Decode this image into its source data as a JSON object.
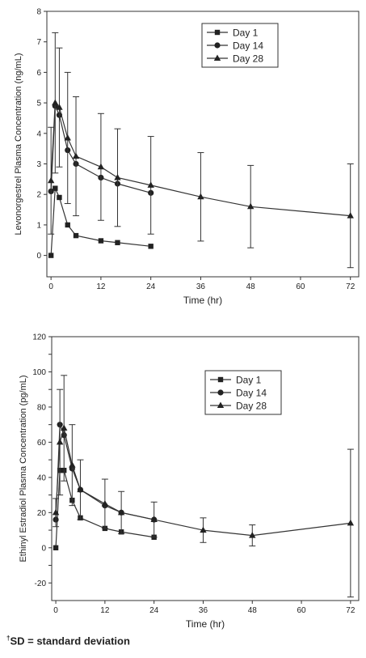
{
  "chart_data": [
    {
      "type": "line",
      "title": "",
      "xlabel": "Time (hr)",
      "ylabel": "Levonorgestrel Plasma Concentration (ng/mL)",
      "xlim": [
        -1,
        74
      ],
      "ylim": [
        -0.7,
        8
      ],
      "xticks": [
        0,
        12,
        24,
        36,
        48,
        60,
        72
      ],
      "yticks": [
        0,
        1,
        2,
        3,
        4,
        5,
        6,
        7,
        8
      ],
      "grid": false,
      "legend": "top-right",
      "series": [
        {
          "name": "Day 1",
          "marker": "square",
          "x": [
            0,
            1,
            2,
            4,
            6,
            12,
            16,
            24
          ],
          "y": [
            0.0,
            2.2,
            1.9,
            1.0,
            0.65,
            0.48,
            0.42,
            0.3
          ],
          "err": [
            0,
            0,
            0,
            0,
            0,
            0,
            0,
            0
          ]
        },
        {
          "name": "Day 14",
          "marker": "circle",
          "x": [
            0,
            1,
            2,
            4,
            6,
            12,
            16,
            24
          ],
          "y": [
            2.1,
            4.9,
            4.6,
            3.45,
            3.0,
            2.55,
            2.35,
            2.05
          ],
          "err": [
            0,
            0,
            0,
            0,
            0,
            0,
            0,
            0
          ]
        },
        {
          "name": "Day 28",
          "marker": "triangle",
          "x": [
            0,
            1,
            2,
            4,
            6,
            12,
            16,
            24,
            36,
            48,
            72
          ],
          "y": [
            2.45,
            5.0,
            4.85,
            3.85,
            3.25,
            2.9,
            2.55,
            2.3,
            1.92,
            1.6,
            1.3
          ],
          "err": [
            1.75,
            2.3,
            1.95,
            2.15,
            1.95,
            1.75,
            1.6,
            1.6,
            1.45,
            1.35,
            1.7
          ]
        }
      ]
    },
    {
      "type": "line",
      "title": "",
      "xlabel": "Time (hr)",
      "ylabel": "Ethinyl Estradiol Plasma Concentration (pg/mL)",
      "xlim": [
        -1,
        74
      ],
      "ylim": [
        -30,
        120
      ],
      "xticks": [
        0,
        12,
        24,
        36,
        48,
        60,
        72
      ],
      "yticks": [
        -20,
        -10,
        0,
        10,
        20,
        30,
        40,
        50,
        60,
        70,
        80,
        90,
        100,
        110,
        120
      ],
      "ytick_labels": [
        "-20",
        "",
        "0",
        "",
        "20",
        "",
        "40",
        "",
        "60",
        "",
        "80",
        "",
        "100",
        "",
        "120"
      ],
      "grid": false,
      "legend": "top-right",
      "series": [
        {
          "name": "Day 1",
          "marker": "square",
          "x": [
            0,
            1,
            2,
            4,
            6,
            12,
            16,
            24
          ],
          "y": [
            0,
            44,
            44,
            27,
            17,
            11,
            9,
            6
          ],
          "err": [
            0,
            0,
            0,
            0,
            0,
            0,
            0,
            0
          ]
        },
        {
          "name": "Day 14",
          "marker": "circle",
          "x": [
            0,
            1,
            2,
            4,
            6,
            12,
            16,
            24
          ],
          "y": [
            16,
            70,
            64,
            45,
            33,
            24,
            20,
            16
          ],
          "err": [
            0,
            0,
            0,
            0,
            0,
            0,
            0,
            0
          ]
        },
        {
          "name": "Day 28",
          "marker": "triangle",
          "x": [
            0,
            1,
            2,
            4,
            6,
            12,
            16,
            24,
            36,
            48,
            72
          ],
          "y": [
            20,
            60,
            68,
            47,
            33,
            25,
            20,
            16,
            10,
            7,
            14
          ],
          "err": [
            8,
            30,
            30,
            23,
            17,
            14,
            12,
            10,
            7,
            6,
            42
          ]
        }
      ]
    }
  ],
  "footnote": {
    "marker": "†",
    "text": "SD = standard deviation"
  }
}
